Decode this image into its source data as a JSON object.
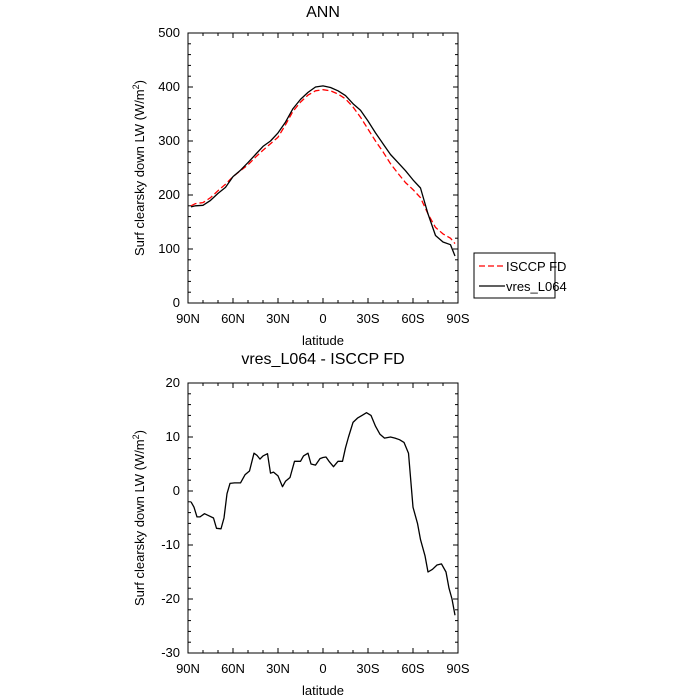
{
  "chart_data": [
    {
      "type": "line",
      "title": "ANN",
      "xlabel": "latitude",
      "ylabel": "Surf clearsky down LW (W/m",
      "ylabel_sup": "2",
      "ylabel_end": ")",
      "xlim": [
        90,
        -90
      ],
      "ylim": [
        0,
        500
      ],
      "xticks": [
        90,
        60,
        30,
        0,
        -30,
        -60,
        -90
      ],
      "xtick_labels": [
        "90N",
        "60N",
        "30N",
        "0",
        "30S",
        "60S",
        "90S"
      ],
      "yticks": [
        0,
        100,
        200,
        300,
        400,
        500
      ],
      "ytick_labels": [
        "0",
        "100",
        "200",
        "300",
        "400",
        "500"
      ],
      "grid": false,
      "legend": "outside-right",
      "series": [
        {
          "name": "ISCCP FD",
          "color": "#ff0000",
          "dash": "dashed",
          "x": [
            88,
            85,
            80,
            75,
            70,
            65,
            60,
            55,
            50,
            45,
            40,
            35,
            30,
            25,
            20,
            15,
            10,
            5,
            0,
            -5,
            -10,
            -15,
            -20,
            -25,
            -30,
            -35,
            -40,
            -45,
            -50,
            -55,
            -60,
            -65,
            -70,
            -75,
            -80,
            -85,
            -88
          ],
          "y": [
            180,
            184,
            186,
            195,
            208,
            220,
            234,
            245,
            256,
            270,
            283,
            295,
            307,
            330,
            355,
            372,
            385,
            393,
            395,
            393,
            387,
            378,
            363,
            344,
            322,
            300,
            280,
            258,
            240,
            223,
            210,
            195,
            165,
            140,
            128,
            120,
            110
          ]
        },
        {
          "name": "vres_L064",
          "color": "#000000",
          "dash": "solid",
          "x": [
            88,
            85,
            80,
            75,
            70,
            65,
            60,
            55,
            50,
            45,
            40,
            35,
            30,
            25,
            20,
            15,
            10,
            5,
            0,
            -5,
            -10,
            -15,
            -20,
            -25,
            -30,
            -35,
            -40,
            -45,
            -50,
            -55,
            -60,
            -65,
            -70,
            -75,
            -80,
            -85,
            -88
          ],
          "y": [
            178,
            180,
            181,
            190,
            203,
            214,
            234,
            246,
            260,
            275,
            290,
            300,
            315,
            335,
            360,
            377,
            390,
            400,
            402,
            399,
            393,
            384,
            369,
            357,
            337,
            315,
            295,
            275,
            260,
            245,
            228,
            213,
            165,
            125,
            113,
            108,
            87
          ]
        }
      ]
    },
    {
      "type": "line",
      "title": "vres_L064 - ISCCP FD",
      "xlabel": "latitude",
      "ylabel": "Surf clearsky down LW (W/m",
      "ylabel_sup": "2",
      "ylabel_end": ")",
      "xlim": [
        90,
        -90
      ],
      "ylim": [
        -30,
        20
      ],
      "xticks": [
        90,
        60,
        30,
        0,
        -30,
        -60,
        -90
      ],
      "xtick_labels": [
        "90N",
        "60N",
        "30N",
        "0",
        "30S",
        "60S",
        "90S"
      ],
      "yticks": [
        -30,
        -20,
        -10,
        0,
        10,
        20
      ],
      "ytick_labels": [
        "-30",
        "-20",
        "-10",
        "0",
        "10",
        "20"
      ],
      "grid": false,
      "series": [
        {
          "color": "#000000",
          "dash": "solid",
          "x": [
            88,
            86,
            84,
            82,
            79,
            76,
            73,
            71,
            68,
            66,
            64,
            62,
            59,
            55,
            52,
            49,
            46,
            44,
            42,
            40,
            37,
            35,
            33,
            30,
            27,
            25,
            22,
            19,
            15,
            13,
            10,
            8,
            5,
            2,
            0,
            -2,
            -4,
            -7,
            -10,
            -13,
            -15,
            -17,
            -20,
            -23,
            -26,
            -29,
            -32,
            -35,
            -38,
            -41,
            -45,
            -48,
            -51,
            -54,
            -57,
            -60,
            -63,
            -65,
            -68,
            -70,
            -73,
            -76,
            -79,
            -82,
            -84,
            -86,
            -88
          ],
          "y": [
            -2.0,
            -3.0,
            -4.8,
            -4.8,
            -4.2,
            -4.6,
            -5.0,
            -6.9,
            -7.0,
            -5.0,
            -0.5,
            1.4,
            1.5,
            1.5,
            3.0,
            3.7,
            7.0,
            6.6,
            5.9,
            6.5,
            6.9,
            3.3,
            3.5,
            2.8,
            0.8,
            1.8,
            2.5,
            5.5,
            5.5,
            6.5,
            7.0,
            5.0,
            4.8,
            6.0,
            6.2,
            6.3,
            5.5,
            4.5,
            5.5,
            5.5,
            8.0,
            10.0,
            12.7,
            13.5,
            14.0,
            14.5,
            14.0,
            12.0,
            10.5,
            9.8,
            10.0,
            9.8,
            9.5,
            9.0,
            7.0,
            -3.0,
            -6.0,
            -9.0,
            -12.0,
            -15.0,
            -14.5,
            -13.7,
            -13.5,
            -15.0,
            -18.0,
            -20.0,
            -23.0
          ]
        }
      ]
    }
  ]
}
